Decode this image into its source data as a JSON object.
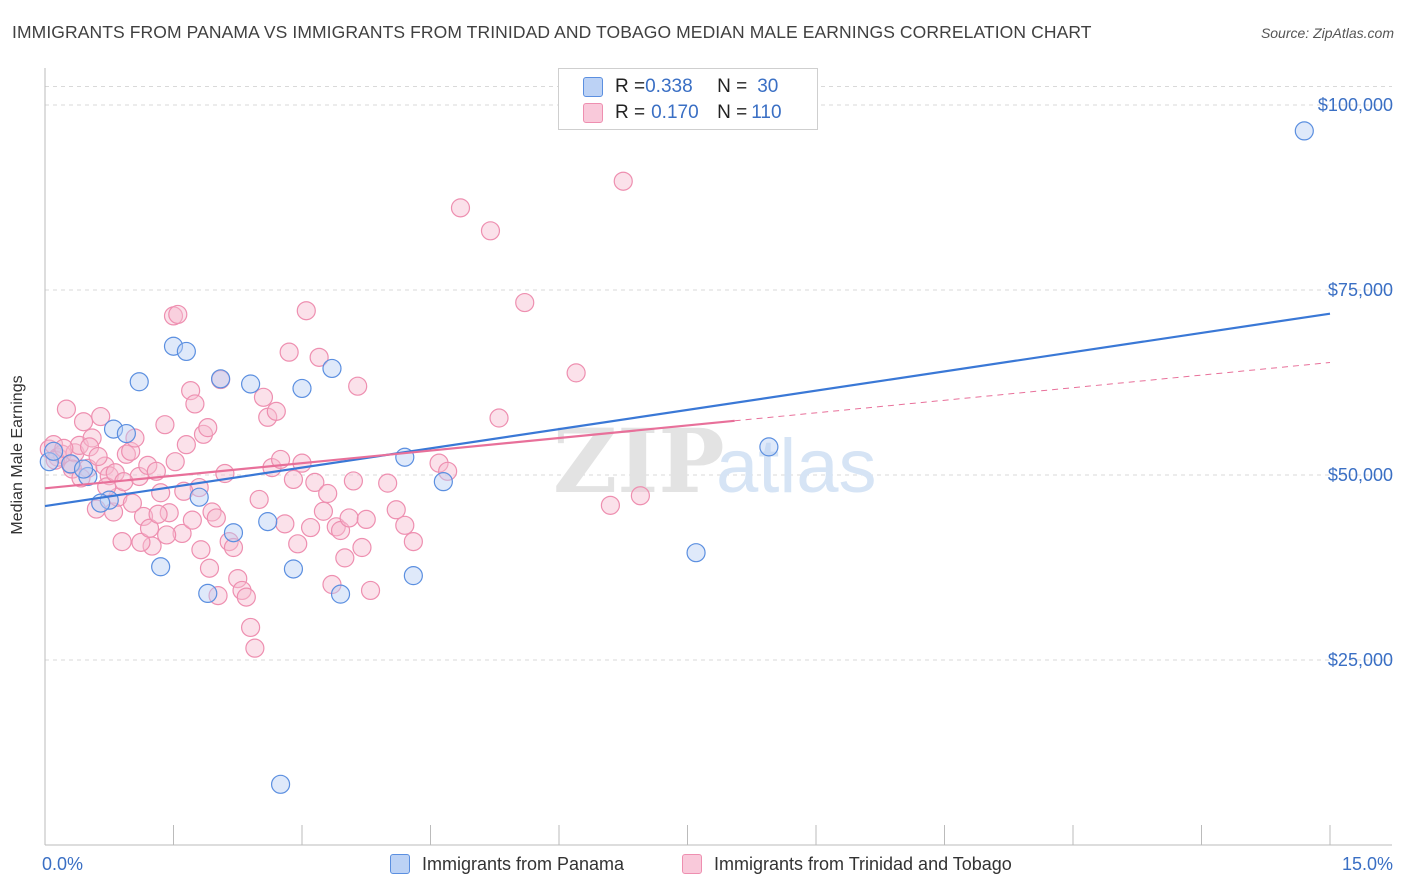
{
  "title": "IMMIGRANTS FROM PANAMA VS IMMIGRANTS FROM TRINIDAD AND TOBAGO MEDIAN MALE EARNINGS CORRELATION CHART",
  "source": "Source: ZipAtlas.com",
  "watermark": "ZIPatlas",
  "legend_top": {
    "rows": [
      {
        "r_label": "R = ",
        "r_value": "0.338",
        "n_label": "N = ",
        "n_value": "30"
      },
      {
        "r_label": "R = ",
        "r_value": "0.170",
        "n_label": "N = ",
        "n_value": "110"
      }
    ]
  },
  "legend_bottom": [
    "Immigrants from Panama",
    "Immigrants from Trinidad and Tobago"
  ],
  "chart_data": {
    "type": "scatter",
    "xlabel": "",
    "ylabel": "Median Male Earnings",
    "xlim": [
      0,
      15
    ],
    "ylim": [
      0,
      105000
    ],
    "x_tick_labels": [
      "0.0%",
      "15.0%"
    ],
    "y_ticks": [
      25000,
      50000,
      75000,
      100000
    ],
    "y_tick_labels": [
      "$25,000",
      "$50,000",
      "$75,000",
      "$100,000"
    ],
    "grid": "horizontal dashed",
    "legend": "top-center and bottom",
    "colors": {
      "panama": "#5b8fe0",
      "trinidad": "#ee8fb0",
      "panama_line": "#3a78d6",
      "trinidad_line": "#e8709a"
    },
    "series": [
      {
        "name": "Immigrants from Panama",
        "color": "#5b8fe0",
        "trend": {
          "x": [
            0,
            15
          ],
          "y": [
            45800,
            71800
          ],
          "dashed_from": null
        },
        "points": [
          [
            0.05,
            51800
          ],
          [
            0.1,
            53200
          ],
          [
            0.3,
            51500
          ],
          [
            0.5,
            49800
          ],
          [
            0.8,
            56200
          ],
          [
            0.75,
            46600
          ],
          [
            1.1,
            62600
          ],
          [
            1.35,
            37600
          ],
          [
            1.5,
            67400
          ],
          [
            1.65,
            66700
          ],
          [
            2.05,
            63000
          ],
          [
            1.8,
            47000
          ],
          [
            1.9,
            34000
          ],
          [
            2.2,
            42200
          ],
          [
            2.4,
            62300
          ],
          [
            2.6,
            43700
          ],
          [
            2.9,
            37300
          ],
          [
            3.0,
            61700
          ],
          [
            3.35,
            64400
          ],
          [
            3.45,
            33900
          ],
          [
            4.2,
            52400
          ],
          [
            4.3,
            36400
          ],
          [
            4.65,
            49100
          ],
          [
            7.6,
            39500
          ],
          [
            8.45,
            53800
          ],
          [
            14.7,
            96500
          ],
          [
            2.75,
            8200
          ],
          [
            0.95,
            55600
          ],
          [
            0.65,
            46200
          ],
          [
            0.45,
            50800
          ]
        ]
      },
      {
        "name": "Immigrants from Trinidad and Tobago",
        "color": "#ee8fb0",
        "trend": {
          "x": [
            0,
            15
          ],
          "y": [
            48200,
            65200
          ],
          "dashed_from": 8.05
        },
        "points": [
          [
            0.05,
            53500
          ],
          [
            0.1,
            54100
          ],
          [
            0.15,
            52400
          ],
          [
            0.2,
            52800
          ],
          [
            0.25,
            58900
          ],
          [
            0.3,
            51400
          ],
          [
            0.35,
            53000
          ],
          [
            0.4,
            54000
          ],
          [
            0.45,
            57200
          ],
          [
            0.5,
            50900
          ],
          [
            0.55,
            55000
          ],
          [
            0.6,
            45400
          ],
          [
            0.65,
            57900
          ],
          [
            0.7,
            51200
          ],
          [
            0.75,
            49900
          ],
          [
            0.8,
            45000
          ],
          [
            0.85,
            47000
          ],
          [
            0.9,
            41000
          ],
          [
            0.95,
            52800
          ],
          [
            1.0,
            53200
          ],
          [
            1.05,
            55000
          ],
          [
            1.1,
            49800
          ],
          [
            1.15,
            44400
          ],
          [
            1.2,
            51300
          ],
          [
            1.25,
            40400
          ],
          [
            1.3,
            50500
          ],
          [
            1.35,
            47600
          ],
          [
            1.4,
            56800
          ],
          [
            1.45,
            44900
          ],
          [
            1.5,
            71500
          ],
          [
            1.55,
            71700
          ],
          [
            1.6,
            42100
          ],
          [
            1.65,
            54100
          ],
          [
            1.7,
            61400
          ],
          [
            1.75,
            59600
          ],
          [
            1.8,
            48300
          ],
          [
            1.85,
            55500
          ],
          [
            1.9,
            56400
          ],
          [
            1.95,
            45000
          ],
          [
            2.0,
            44200
          ],
          [
            2.05,
            62900
          ],
          [
            2.1,
            50200
          ],
          [
            2.15,
            41000
          ],
          [
            2.2,
            40200
          ],
          [
            2.25,
            36000
          ],
          [
            2.3,
            34400
          ],
          [
            2.35,
            33500
          ],
          [
            2.4,
            29400
          ],
          [
            2.45,
            26600
          ],
          [
            2.5,
            46700
          ],
          [
            2.55,
            60500
          ],
          [
            2.6,
            57800
          ],
          [
            2.65,
            51000
          ],
          [
            2.7,
            58600
          ],
          [
            2.75,
            52100
          ],
          [
            2.8,
            43400
          ],
          [
            2.85,
            66600
          ],
          [
            2.9,
            49400
          ],
          [
            2.95,
            40700
          ],
          [
            3.0,
            51600
          ],
          [
            3.05,
            72200
          ],
          [
            3.1,
            42900
          ],
          [
            3.15,
            49000
          ],
          [
            3.2,
            65900
          ],
          [
            3.25,
            45100
          ],
          [
            3.3,
            47500
          ],
          [
            3.35,
            35200
          ],
          [
            3.4,
            43000
          ],
          [
            3.45,
            42500
          ],
          [
            3.5,
            38800
          ],
          [
            3.55,
            44200
          ],
          [
            3.6,
            49200
          ],
          [
            3.65,
            62000
          ],
          [
            3.7,
            40200
          ],
          [
            3.75,
            44000
          ],
          [
            3.8,
            34400
          ],
          [
            4.0,
            48900
          ],
          [
            4.1,
            45300
          ],
          [
            4.2,
            43200
          ],
          [
            4.3,
            41000
          ],
          [
            4.6,
            51600
          ],
          [
            4.7,
            50500
          ],
          [
            4.85,
            86100
          ],
          [
            5.2,
            83000
          ],
          [
            5.3,
            57700
          ],
          [
            5.6,
            73300
          ],
          [
            6.2,
            63800
          ],
          [
            6.6,
            45900
          ],
          [
            6.75,
            89700
          ],
          [
            6.95,
            47200
          ],
          [
            0.12,
            52000
          ],
          [
            0.22,
            53600
          ],
          [
            0.32,
            50800
          ],
          [
            0.42,
            49600
          ],
          [
            0.52,
            53800
          ],
          [
            0.62,
            52500
          ],
          [
            0.72,
            48400
          ],
          [
            0.82,
            50300
          ],
          [
            0.92,
            49100
          ],
          [
            1.02,
            46200
          ],
          [
            1.12,
            40900
          ],
          [
            1.22,
            42800
          ],
          [
            1.32,
            44700
          ],
          [
            1.42,
            41900
          ],
          [
            1.52,
            51800
          ],
          [
            1.62,
            47800
          ],
          [
            1.72,
            43900
          ],
          [
            1.82,
            39900
          ],
          [
            1.92,
            37400
          ],
          [
            2.02,
            33700
          ]
        ]
      }
    ]
  }
}
